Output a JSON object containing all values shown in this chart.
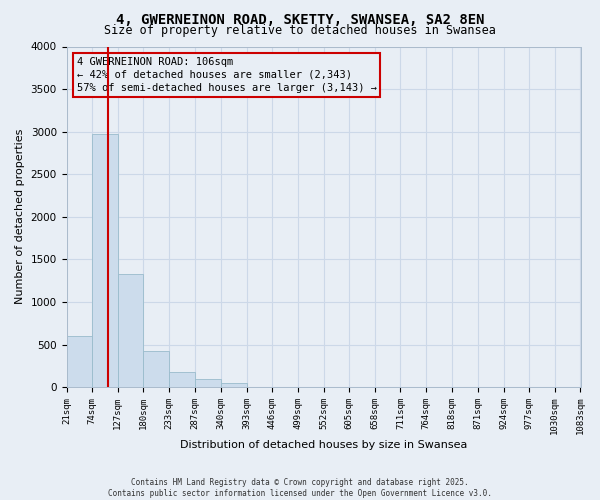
{
  "title": "4, GWERNEINON ROAD, SKETTY, SWANSEA, SA2 8EN",
  "subtitle": "Size of property relative to detached houses in Swansea",
  "xlabel": "Distribution of detached houses by size in Swansea",
  "ylabel": "Number of detached properties",
  "bar_edges": [
    21,
    74,
    127,
    180,
    233,
    287,
    340,
    393,
    446,
    499,
    552,
    605,
    658,
    711,
    764,
    818,
    871,
    924,
    977,
    1030,
    1083
  ],
  "bar_heights": [
    600,
    2970,
    1330,
    420,
    175,
    90,
    50,
    0,
    0,
    0,
    0,
    0,
    0,
    0,
    0,
    0,
    0,
    0,
    0,
    0
  ],
  "bar_color": "#ccdcec",
  "bar_edgecolor": "#99bbcc",
  "vline_x": 106,
  "vline_color": "#cc0000",
  "ylim": [
    0,
    4000
  ],
  "annotation_line1": "4 GWERNEINON ROAD: 106sqm",
  "annotation_line2": "← 42% of detached houses are smaller (2,343)",
  "annotation_line3": "57% of semi-detached houses are larger (3,143) →",
  "annotation_box_color": "#cc0000",
  "grid_color": "#ccd8e8",
  "background_color": "#e8eef5",
  "plot_bg_color": "#e8eef5",
  "footer1": "Contains HM Land Registry data © Crown copyright and database right 2025.",
  "footer2": "Contains public sector information licensed under the Open Government Licence v3.0.",
  "tick_labels": [
    "21sqm",
    "74sqm",
    "127sqm",
    "180sqm",
    "233sqm",
    "287sqm",
    "340sqm",
    "393sqm",
    "446sqm",
    "499sqm",
    "552sqm",
    "605sqm",
    "658sqm",
    "711sqm",
    "764sqm",
    "818sqm",
    "871sqm",
    "924sqm",
    "977sqm",
    "1030sqm",
    "1083sqm"
  ],
  "yticks": [
    0,
    500,
    1000,
    1500,
    2000,
    2500,
    3000,
    3500,
    4000
  ]
}
